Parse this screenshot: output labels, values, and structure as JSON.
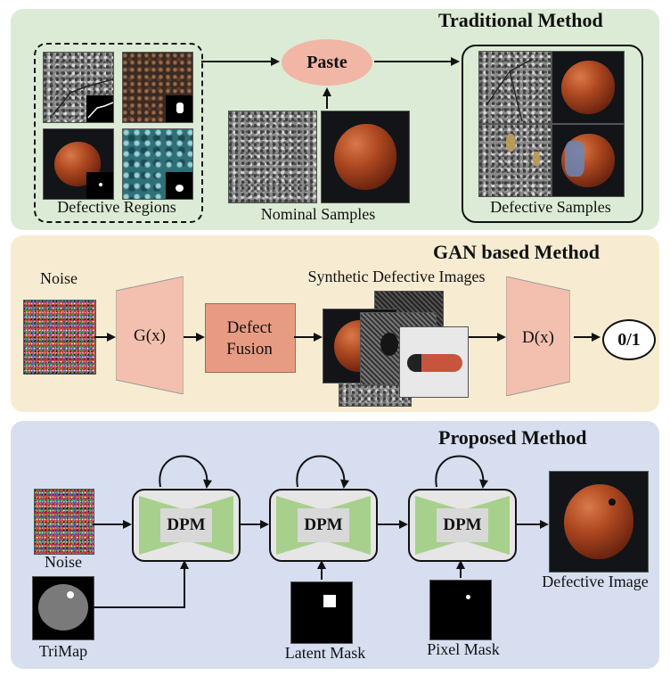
{
  "traditional": {
    "title": "Traditional Method",
    "defective_regions_label": "Defective Regions",
    "paste_label": "Paste",
    "nominal_samples_label": "Nominal Samples",
    "defective_samples_label": "Defective Samples"
  },
  "gan": {
    "title": "GAN based Method",
    "noise_label": "Noise",
    "generator_label": "G(x)",
    "fusion_label_line1": "Defect",
    "fusion_label_line2": "Fusion",
    "synthetic_label": "Synthetic Defective Images",
    "discriminator_label": "D(x)",
    "output_label": "0/1"
  },
  "proposed": {
    "title": "Proposed Method",
    "noise_label": "Noise",
    "trimap_label": "TriMap",
    "dpm_label": "DPM",
    "latent_mask_label": "Latent Mask",
    "pixel_mask_label": "Pixel Mask",
    "defective_image_label": "Defective Image"
  },
  "colors": {
    "traditional_bg": "#dcebd5",
    "gan_bg": "#f7ecd1",
    "proposed_bg": "#d6def0",
    "paste_node": "#f2b6a6",
    "dpm_green": "#a8d08d"
  }
}
